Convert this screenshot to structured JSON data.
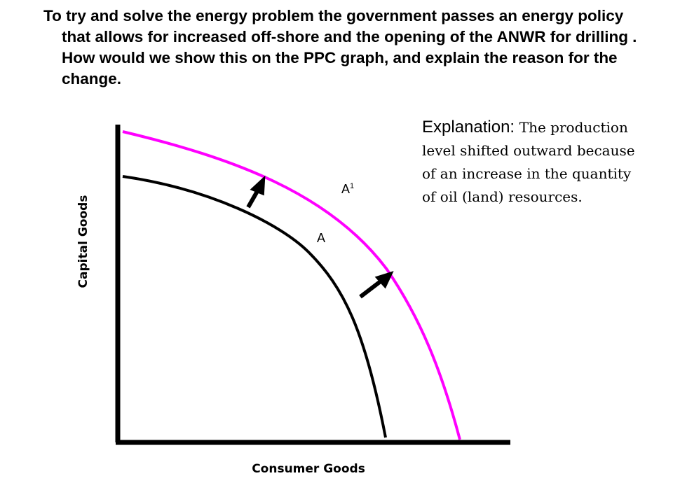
{
  "question": "To try and solve the energy problem the government passes an energy policy that allows for increased off-shore and the opening of the ANWR for drilling . How would we show this on the PPC graph, and explain the reason for the change.",
  "explanation": {
    "label": "Explanation: ",
    "text": "The production level shifted outward because of an increase in the quantity of oil (land) resources."
  },
  "diagram": {
    "x_axis_label": "Consumer Goods",
    "y_axis_label": "Capital Goods",
    "original_curve_label": "A",
    "new_curve_label": "A",
    "new_curve_superscript": "1",
    "colors": {
      "axes": "#000000",
      "original_curve": "#000000",
      "new_curve": "#ff00ff",
      "arrows": "#000000"
    }
  }
}
